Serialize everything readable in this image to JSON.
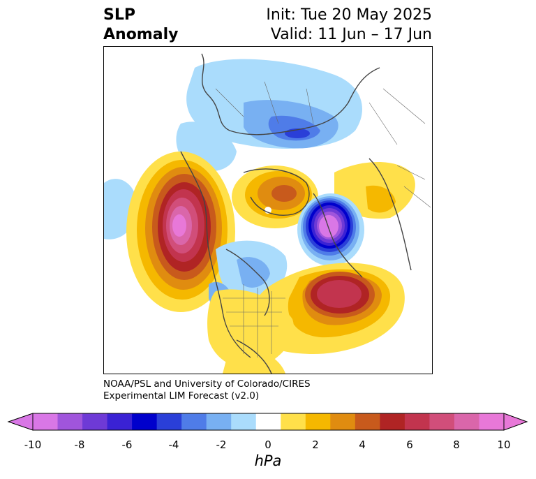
{
  "header": {
    "title_line1": "SLP",
    "title_line2": "Anomaly",
    "init": "Init: Tue 20 May 2025",
    "valid": "Valid: 11 Jun – 17 Jun"
  },
  "credit": {
    "line1": "NOAA/PSL and University of Colorado/CIRES",
    "line2": "Experimental LIM Forecast (v2.0)"
  },
  "colorbar": {
    "unit_label": "hPa",
    "tick_labels": [
      "-10",
      "-8",
      "-6",
      "-4",
      "-2",
      "0",
      "2",
      "4",
      "6",
      "8",
      "10"
    ],
    "colors": [
      "#d977e6",
      "#a055dc",
      "#6e3ad6",
      "#3a22d4",
      "#0000cc",
      "#2a3fd8",
      "#4f7ce8",
      "#78b0f2",
      "#aadcfc",
      "#ffffff",
      "#ffe04a",
      "#f5b800",
      "#e08c10",
      "#c85a1c",
      "#b02424",
      "#c2344e",
      "#d14e7a",
      "#da66aa",
      "#e878d8"
    ],
    "under_color": "#d977e6",
    "over_color": "#e878d8"
  },
  "map": {
    "projection": "north-polar-stereographic",
    "features": [
      {
        "name": "north-pacific-high",
        "anomaly_hpa": 9
      },
      {
        "name": "greenland-high",
        "anomaly_hpa": 5
      },
      {
        "name": "northwest-europe-low",
        "anomaly_hpa": -9
      },
      {
        "name": "eastern-europe-ridge",
        "anomaly_hpa": 2
      },
      {
        "name": "north-atlantic-high",
        "anomaly_hpa": 7
      },
      {
        "name": "eastern-north-america-ridge",
        "anomaly_hpa": 2
      },
      {
        "name": "siberia-low",
        "anomaly_hpa": -5
      },
      {
        "name": "arctic-canada-low",
        "anomaly_hpa": -3
      }
    ]
  }
}
